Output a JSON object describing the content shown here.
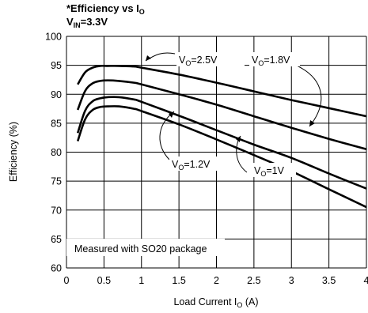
{
  "chart_data": {
    "type": "line",
    "title_main": "*Efficiency vs I",
    "title_main_sub": "O",
    "title_line2": "V",
    "title_line2_sub": "IN",
    "title_line2_rest": "=3.3V",
    "xlabel_main": "Load Current I",
    "xlabel_sub": "O",
    "xlabel_rest": " (A)",
    "ylabel": "Efficiency (%)",
    "xlim": [
      0,
      4
    ],
    "ylim": [
      60,
      100
    ],
    "x_ticks": [
      "0",
      "0.5",
      "1",
      "1.5",
      "2",
      "2.5",
      "3",
      "3.5",
      "4"
    ],
    "y_ticks": [
      "60",
      "65",
      "70",
      "75",
      "80",
      "85",
      "90",
      "95",
      "100"
    ],
    "grid": true,
    "annotation_note": "Measured with SO20 package",
    "series": [
      {
        "name": "VO=2.5V",
        "label_main": "V",
        "label_sub": "O",
        "label_rest": "=2.5V",
        "x": [
          0.15,
          0.25,
          0.35,
          0.45,
          0.55,
          0.7,
          0.9,
          1.0,
          1.5,
          2.0,
          2.5,
          3.0,
          3.5,
          4.0
        ],
        "y": [
          91.7,
          93.8,
          94.6,
          94.9,
          94.9,
          94.9,
          94.8,
          94.6,
          93.4,
          92.0,
          90.5,
          89.0,
          87.6,
          86.2
        ]
      },
      {
        "name": "VO=1.8V",
        "label_main": "V",
        "label_sub": "O",
        "label_rest": "=1.8V",
        "x": [
          0.15,
          0.25,
          0.35,
          0.45,
          0.55,
          0.7,
          0.9,
          1.0,
          1.5,
          2.0,
          2.5,
          3.0,
          3.5,
          4.0
        ],
        "y": [
          87.3,
          90.6,
          91.9,
          92.3,
          92.4,
          92.3,
          92.0,
          91.7,
          90.0,
          88.2,
          86.2,
          84.2,
          82.3,
          80.5
        ]
      },
      {
        "name": "VO=1.2V",
        "label_main": "V",
        "label_sub": "O",
        "label_rest": "=1.2V",
        "x": [
          0.15,
          0.25,
          0.35,
          0.45,
          0.55,
          0.7,
          0.9,
          1.0,
          1.5,
          2.0,
          2.5,
          3.0,
          3.5,
          4.0
        ],
        "y": [
          83.3,
          87.2,
          88.8,
          89.3,
          89.5,
          89.5,
          89.1,
          88.7,
          86.3,
          83.8,
          81.3,
          79.0,
          76.3,
          73.7
        ]
      },
      {
        "name": "VO=1V",
        "label_main": "V",
        "label_sub": "O",
        "label_rest": "=1V",
        "x": [
          0.15,
          0.25,
          0.35,
          0.45,
          0.55,
          0.7,
          0.9,
          1.0,
          1.5,
          2.0,
          2.5,
          3.0,
          3.5,
          4.0
        ],
        "y": [
          81.9,
          85.7,
          87.3,
          87.8,
          87.9,
          87.9,
          87.5,
          87.1,
          84.8,
          82.2,
          79.5,
          76.7,
          73.6,
          70.5
        ]
      }
    ]
  }
}
